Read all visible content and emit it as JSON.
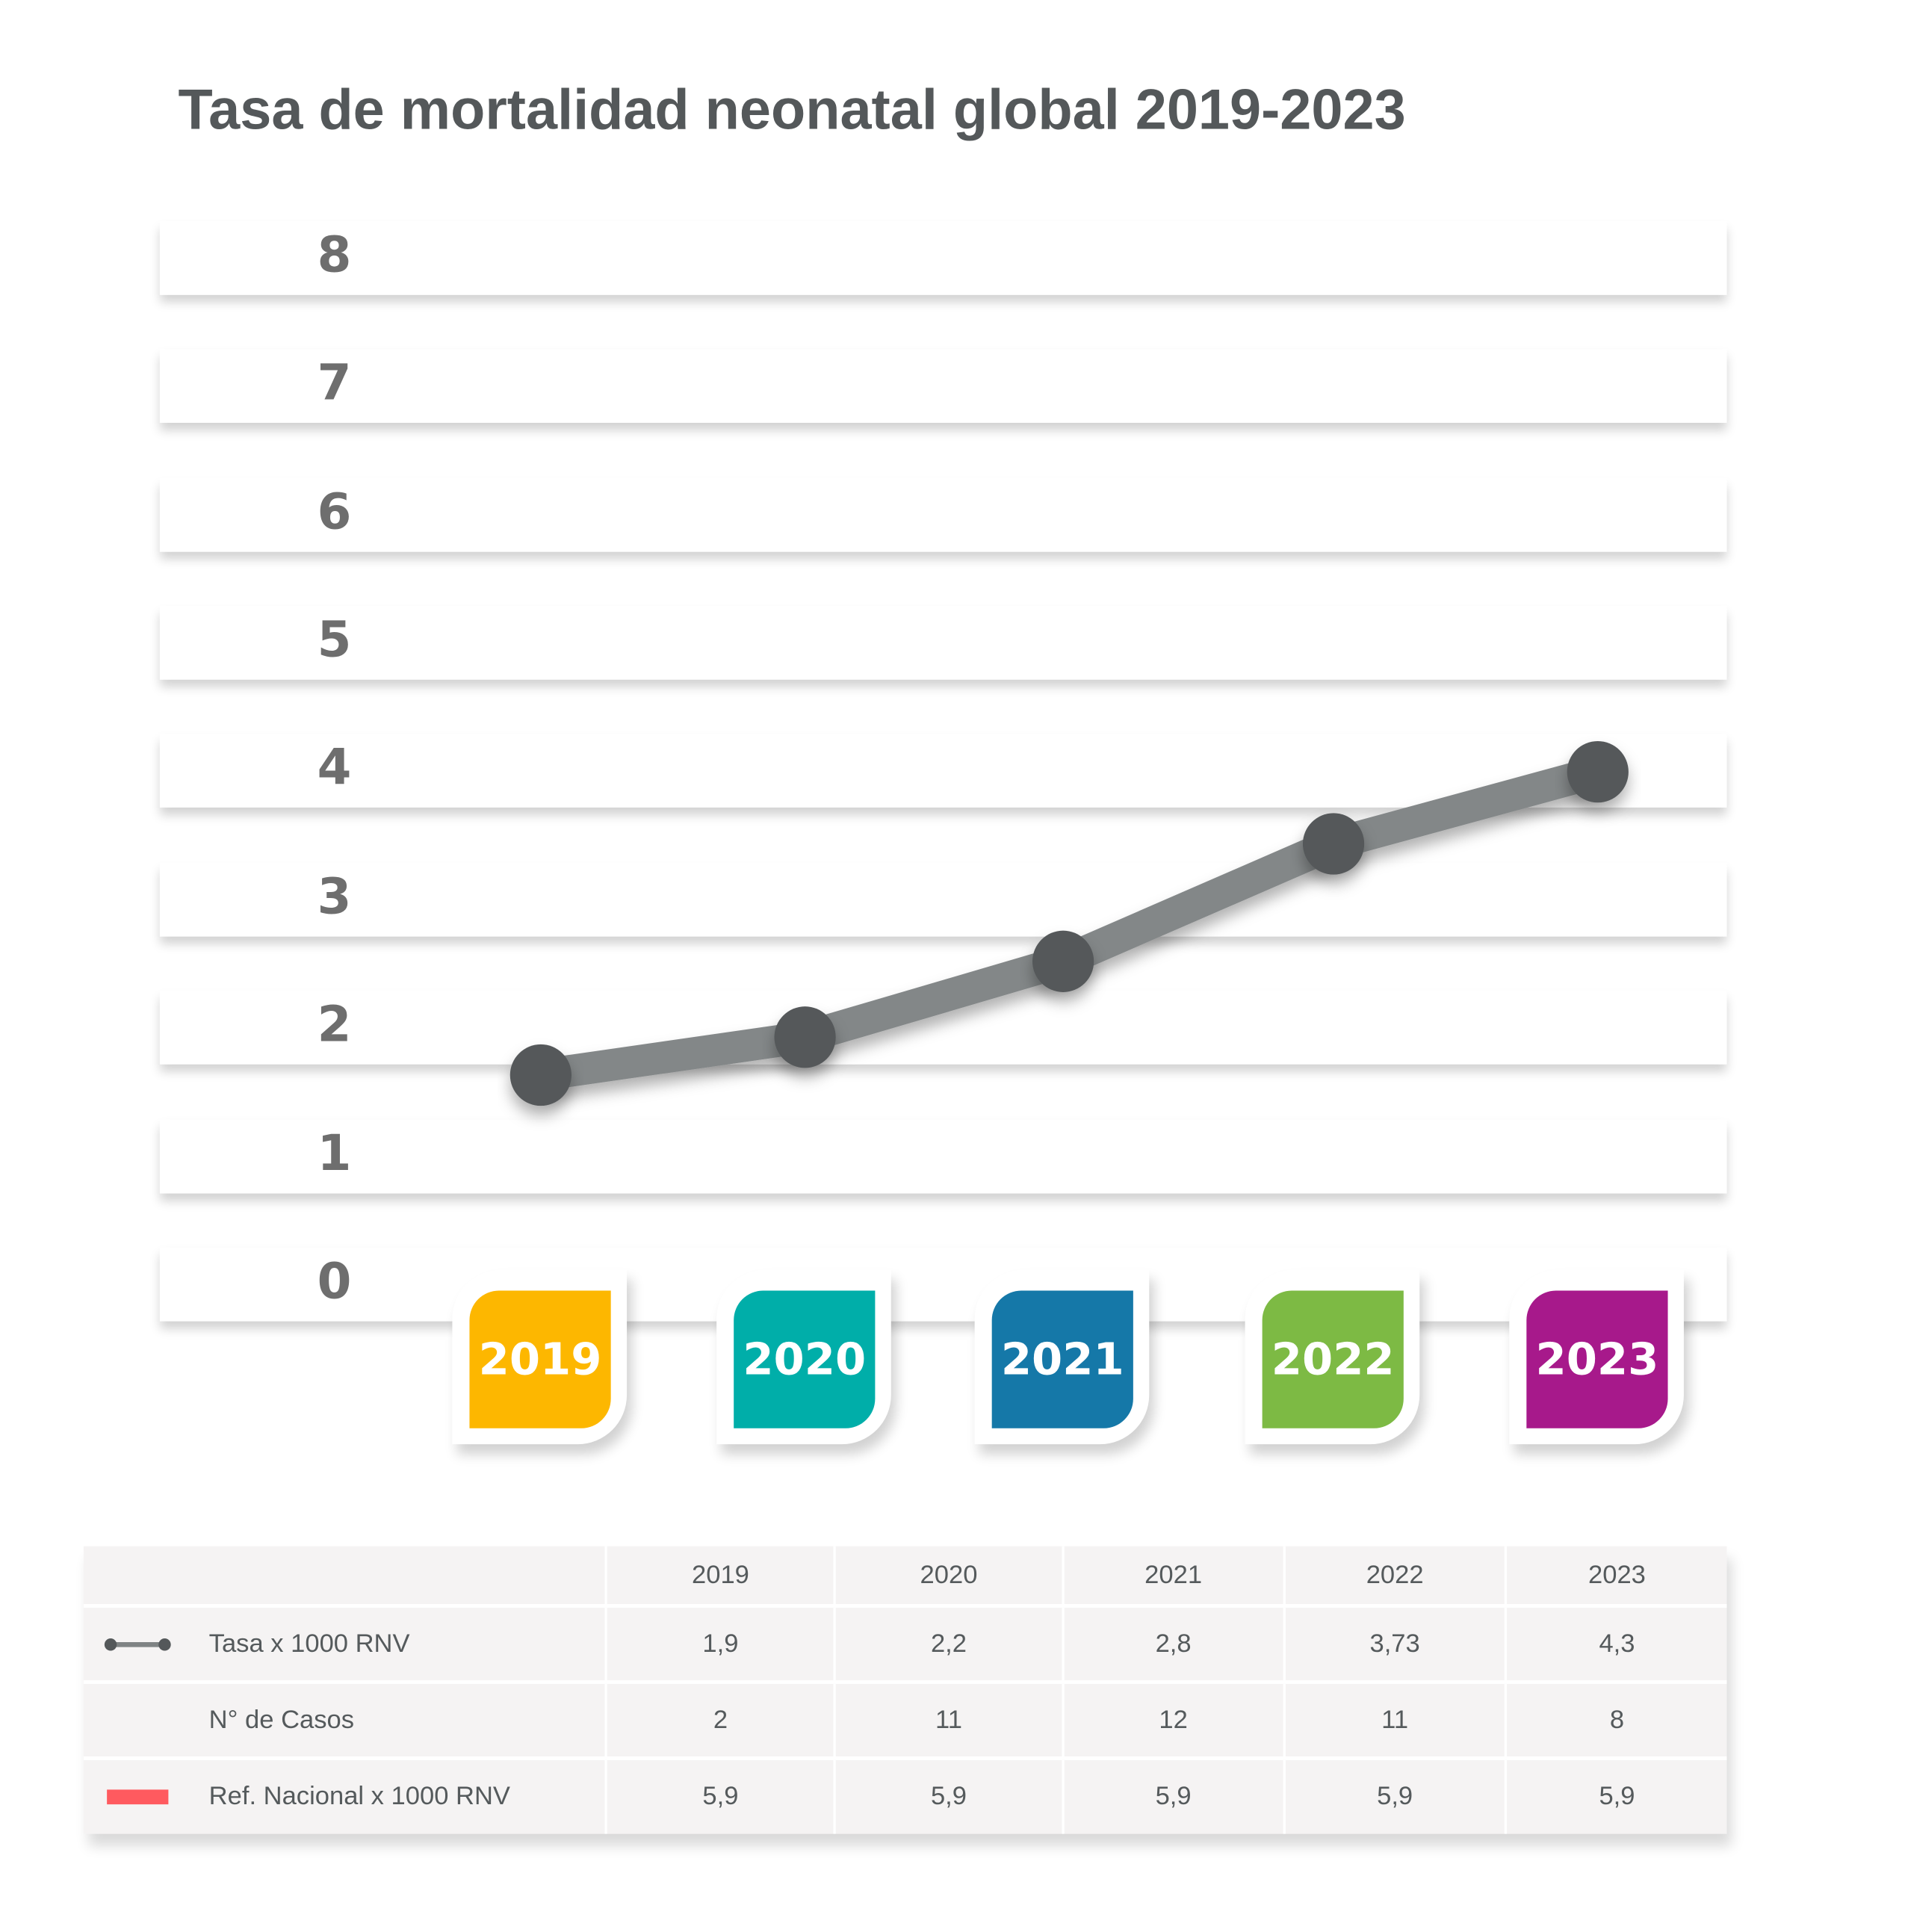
{
  "chart_data": {
    "type": "line",
    "title": "Tasa de mortalidad neonatal global 2019-2023",
    "categories": [
      "2019",
      "2020",
      "2021",
      "2022",
      "2023"
    ],
    "category_colors": [
      "#FDB700",
      "#00AEA9",
      "#1578A8",
      "#7DBA44",
      "#A7198B"
    ],
    "y_ticks": [
      "0",
      "1",
      "2",
      "3",
      "4",
      "5",
      "6",
      "7",
      "8"
    ],
    "ylim": [
      0,
      8
    ],
    "series": [
      {
        "name": "Tasa x 1000 RNV",
        "values": [
          1.9,
          2.2,
          2.8,
          3.73,
          4.3
        ],
        "color": "#54585a"
      },
      {
        "name": "Ref. Nacional x 1000 RNV",
        "values": [
          5.9,
          5.9,
          5.9,
          5.9,
          5.9
        ],
        "color": "#FF5A5F"
      }
    ],
    "xlabel": "",
    "ylabel": "",
    "grid": true
  },
  "table": {
    "headers": [
      "2019",
      "2020",
      "2021",
      "2022",
      "2023"
    ],
    "rows": [
      {
        "label": "Tasa x 1000 RNV",
        "legend": "line-marker",
        "values": [
          "1,9",
          "2,2",
          "2,8",
          "3,73",
          "4,3"
        ]
      },
      {
        "label": "N° de Casos",
        "legend": "none",
        "values": [
          "2",
          "11",
          "12",
          "11",
          "8"
        ]
      },
      {
        "label": "Ref. Nacional x 1000 RNV",
        "legend": "red-bar",
        "values": [
          "5,9",
          "5,9",
          "5,9",
          "5,9",
          "5,9"
        ]
      }
    ]
  }
}
